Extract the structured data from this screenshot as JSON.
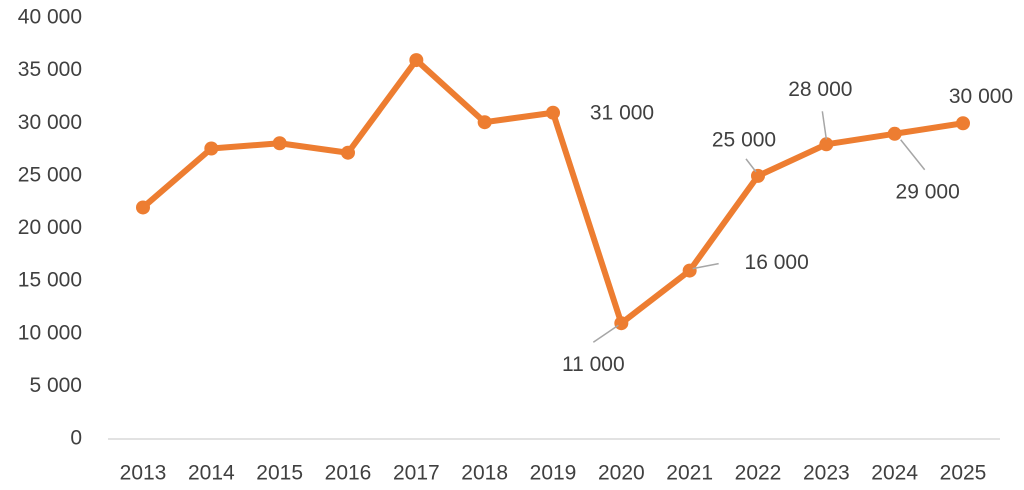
{
  "chart_data": {
    "type": "line",
    "categories": [
      "2013",
      "2014",
      "2015",
      "2016",
      "2017",
      "2018",
      "2019",
      "2020",
      "2021",
      "2022",
      "2023",
      "2024",
      "2025"
    ],
    "series": [
      {
        "color": "#ed7d31",
        "values": [
          22000,
          27600,
          28100,
          27200,
          36000,
          30100,
          31000,
          11000,
          16000,
          25000,
          28000,
          29000,
          30000
        ],
        "value_labels": [
          null,
          null,
          null,
          null,
          null,
          null,
          "31 000",
          "11 000",
          "16 000",
          "25 000",
          "28 000",
          "29 000",
          "30 000"
        ]
      }
    ],
    "ylim": [
      0,
      40000
    ],
    "yticks": [
      {
        "value": 0,
        "label": "0"
      },
      {
        "value": 5000,
        "label": "5 000"
      },
      {
        "value": 10000,
        "label": "10 000"
      },
      {
        "value": 15000,
        "label": "15 000"
      },
      {
        "value": 20000,
        "label": "20 000"
      },
      {
        "value": 25000,
        "label": "25 000"
      },
      {
        "value": 30000,
        "label": "30 000"
      },
      {
        "value": 35000,
        "label": "35 000"
      },
      {
        "value": 40000,
        "label": "40 000"
      }
    ],
    "grid": false
  }
}
